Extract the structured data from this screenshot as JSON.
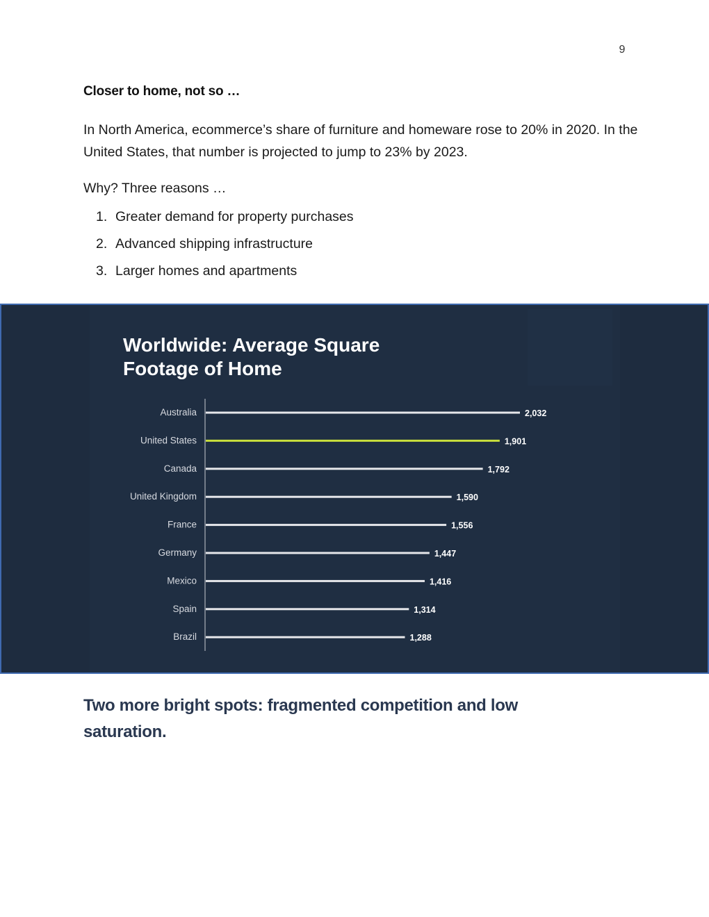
{
  "page": {
    "number": "9",
    "heading": "Closer to home, not so …",
    "paragraph": "In North America, ecommerce’s share of furniture and homeware rose to 20% in 2020. In the United States, that number is projected to jump to 23% by 2023.",
    "lead": "Why? Three reasons …",
    "reasons": [
      {
        "num": "1.",
        "text": "Greater demand for property purchases"
      },
      {
        "num": "2.",
        "text": "Advanced shipping infrastructure"
      },
      {
        "num": "3.",
        "text": "Larger homes and apartments"
      }
    ],
    "callout": "Two more bright spots: fragmented competition and low saturation."
  },
  "colors": {
    "chart_background": "#1e2c3f",
    "chart_border": "#3f6ab0",
    "bar_default": "#e6e7ea",
    "bar_highlight": "#c8de3c",
    "callout_text": "#2a3850"
  },
  "chart_data": {
    "type": "bar",
    "orientation": "horizontal",
    "title_lines": [
      "Worldwide: Average Square",
      "Footage of Home"
    ],
    "categories": [
      "Australia",
      "United States",
      "Canada",
      "United Kingdom",
      "France",
      "Germany",
      "Mexico",
      "Spain",
      "Brazil"
    ],
    "values": [
      2032,
      1901,
      1792,
      1590,
      1556,
      1447,
      1416,
      1314,
      1288
    ],
    "value_labels": [
      "2,032",
      "1,901",
      "1,792",
      "1,590",
      "1,556",
      "1,447",
      "1,416",
      "1,314",
      "1,288"
    ],
    "highlight": "United States",
    "xlim": [
      0,
      2032
    ],
    "grid": false,
    "legend": "none"
  }
}
